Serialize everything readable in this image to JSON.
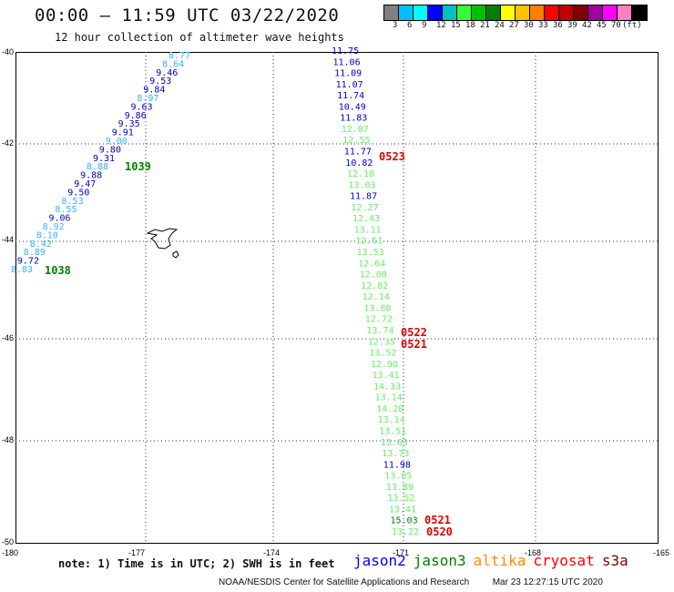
{
  "header": {
    "title": "00:00 – 11:59 UTC 03/22/2020",
    "subtitle": "12 hour collection of altimeter wave heights"
  },
  "colorbar": {
    "colors": [
      "#808080",
      "#00c0ff",
      "#00ffff",
      "#0000ff",
      "#00c0c0",
      "#33ff33",
      "#00c000",
      "#008000",
      "#ffff00",
      "#ffc000",
      "#ff8000",
      "#ff0000",
      "#c00000",
      "#800000",
      "#a000a0",
      "#ff00ff",
      "#ff80c0",
      "#000000"
    ],
    "labels": [
      "3",
      "6",
      "9",
      "12",
      "15",
      "18",
      "21",
      "24",
      "27",
      "30",
      "33",
      "36",
      "39",
      "42",
      "45",
      "70",
      "(ft)"
    ]
  },
  "map": {
    "lat_ticks": [
      "-40",
      "-42",
      "-44",
      "-46",
      "-48",
      "-50"
    ],
    "lon_ticks": [
      "-180",
      "-177",
      "-174",
      "-171",
      "-168",
      "-165"
    ],
    "left_track": [
      {
        "v": "8.77",
        "c": "#33b4ff"
      },
      {
        "v": "8.64",
        "c": "#33b4ff"
      },
      {
        "v": "9.46",
        "c": "#0000c8"
      },
      {
        "v": "9.53",
        "c": "#0000c8"
      },
      {
        "v": "9.84",
        "c": "#0000c8"
      },
      {
        "v": "8.97",
        "c": "#33b4ff"
      },
      {
        "v": "9.63",
        "c": "#0000c8"
      },
      {
        "v": "9.86",
        "c": "#0000c8"
      },
      {
        "v": "9.35",
        "c": "#0000c8"
      },
      {
        "v": "9.91",
        "c": "#0000c8"
      },
      {
        "v": "9.00",
        "c": "#33b4ff"
      },
      {
        "v": "9.80",
        "c": "#0000c8"
      },
      {
        "v": "9.31",
        "c": "#0000c8"
      },
      {
        "v": "8.88",
        "c": "#33b4ff"
      },
      {
        "v": "9.88",
        "c": "#0000c8"
      },
      {
        "v": "9.47",
        "c": "#0000c8"
      },
      {
        "v": "9.50",
        "c": "#0000c8"
      },
      {
        "v": "8.53",
        "c": "#33b4ff"
      },
      {
        "v": "8.55",
        "c": "#33b4ff"
      },
      {
        "v": "9.06",
        "c": "#0000c8"
      },
      {
        "v": "8.92",
        "c": "#33b4ff"
      },
      {
        "v": "8.10",
        "c": "#33b4ff"
      },
      {
        "v": "8.42",
        "c": "#33b4ff"
      },
      {
        "v": "8.89",
        "c": "#33b4ff"
      },
      {
        "v": "9.72",
        "c": "#0000c8"
      },
      {
        "v": "8.83",
        "c": "#33b4ff"
      }
    ],
    "right_track": [
      {
        "v": "11.75",
        "c": "#0000c8"
      },
      {
        "v": "11.06",
        "c": "#0000c8"
      },
      {
        "v": "11.09",
        "c": "#0000c8"
      },
      {
        "v": "11.07",
        "c": "#0000c8"
      },
      {
        "v": "11.74",
        "c": "#0000c8"
      },
      {
        "v": "10.49",
        "c": "#0000c8"
      },
      {
        "v": "11.83",
        "c": "#0000c8"
      },
      {
        "v": "12.07",
        "c": "#66ee66"
      },
      {
        "v": "12.55",
        "c": "#66ee66"
      },
      {
        "v": "11.77",
        "c": "#0000c8"
      },
      {
        "v": "10.82",
        "c": "#0000c8"
      },
      {
        "v": "12.18",
        "c": "#66ee66"
      },
      {
        "v": "13.03",
        "c": "#66ee66"
      },
      {
        "v": "11.87",
        "c": "#0000c8"
      },
      {
        "v": "12.27",
        "c": "#66ee66"
      },
      {
        "v": "12.43",
        "c": "#66ee66"
      },
      {
        "v": "13.11",
        "c": "#66ee66"
      },
      {
        "v": "12.51",
        "c": "#66ee66"
      },
      {
        "v": "13.53",
        "c": "#66ee66"
      },
      {
        "v": "12.64",
        "c": "#66ee66"
      },
      {
        "v": "12.08",
        "c": "#66ee66"
      },
      {
        "v": "12.82",
        "c": "#66ee66"
      },
      {
        "v": "12.14",
        "c": "#66ee66"
      },
      {
        "v": "13.80",
        "c": "#66ee66"
      },
      {
        "v": "12.72",
        "c": "#66ee66"
      },
      {
        "v": "13.74",
        "c": "#66ee66"
      },
      {
        "v": "12.35",
        "c": "#66ee66"
      },
      {
        "v": "13.52",
        "c": "#66ee66"
      },
      {
        "v": "12.90",
        "c": "#66ee66"
      },
      {
        "v": "13.41",
        "c": "#66ee66"
      },
      {
        "v": "14.33",
        "c": "#66ee66"
      },
      {
        "v": "13.14",
        "c": "#66ee66"
      },
      {
        "v": "14.28",
        "c": "#66ee66"
      },
      {
        "v": "13.14",
        "c": "#66ee66"
      },
      {
        "v": "13.51",
        "c": "#66ee66"
      },
      {
        "v": "13.69",
        "c": "#66ee66"
      },
      {
        "v": "13.73",
        "c": "#66ee66"
      },
      {
        "v": "11.98",
        "c": "#0000c8"
      },
      {
        "v": "13.05",
        "c": "#66ee66"
      },
      {
        "v": "13.89",
        "c": "#66ee66"
      },
      {
        "v": "13.52",
        "c": "#66ee66"
      },
      {
        "v": "13.41",
        "c": "#66ee66"
      },
      {
        "v": "15.03",
        "c": "#008000"
      },
      {
        "v": "13.22",
        "c": "#66ee66"
      }
    ],
    "time_labels": [
      {
        "t": "1039",
        "c": "#008000"
      },
      {
        "t": "1038",
        "c": "#008000"
      },
      {
        "t": "0523",
        "c": "#e00000"
      },
      {
        "t": "0522",
        "c": "#e00000"
      },
      {
        "t": "0521",
        "c": "#e00000"
      },
      {
        "t": "0521",
        "c": "#e00000"
      },
      {
        "t": "0520",
        "c": "#e00000"
      }
    ]
  },
  "footer": {
    "note": "note: 1) Time is in UTC; 2) SWH is in feet",
    "satellites": [
      {
        "name": "jason2",
        "color": "#0000ff"
      },
      {
        "name": "jason3",
        "color": "#008000"
      },
      {
        "name": "altika",
        "color": "#ff8c00"
      },
      {
        "name": "cryosat",
        "color": "#ff0000"
      },
      {
        "name": "s3a",
        "color": "#800000"
      }
    ],
    "credit": "NOAA/NESDIS Center for Satellite Applications and Research",
    "timestamp": "Mar 23 12:27:15 UTC 2020"
  }
}
